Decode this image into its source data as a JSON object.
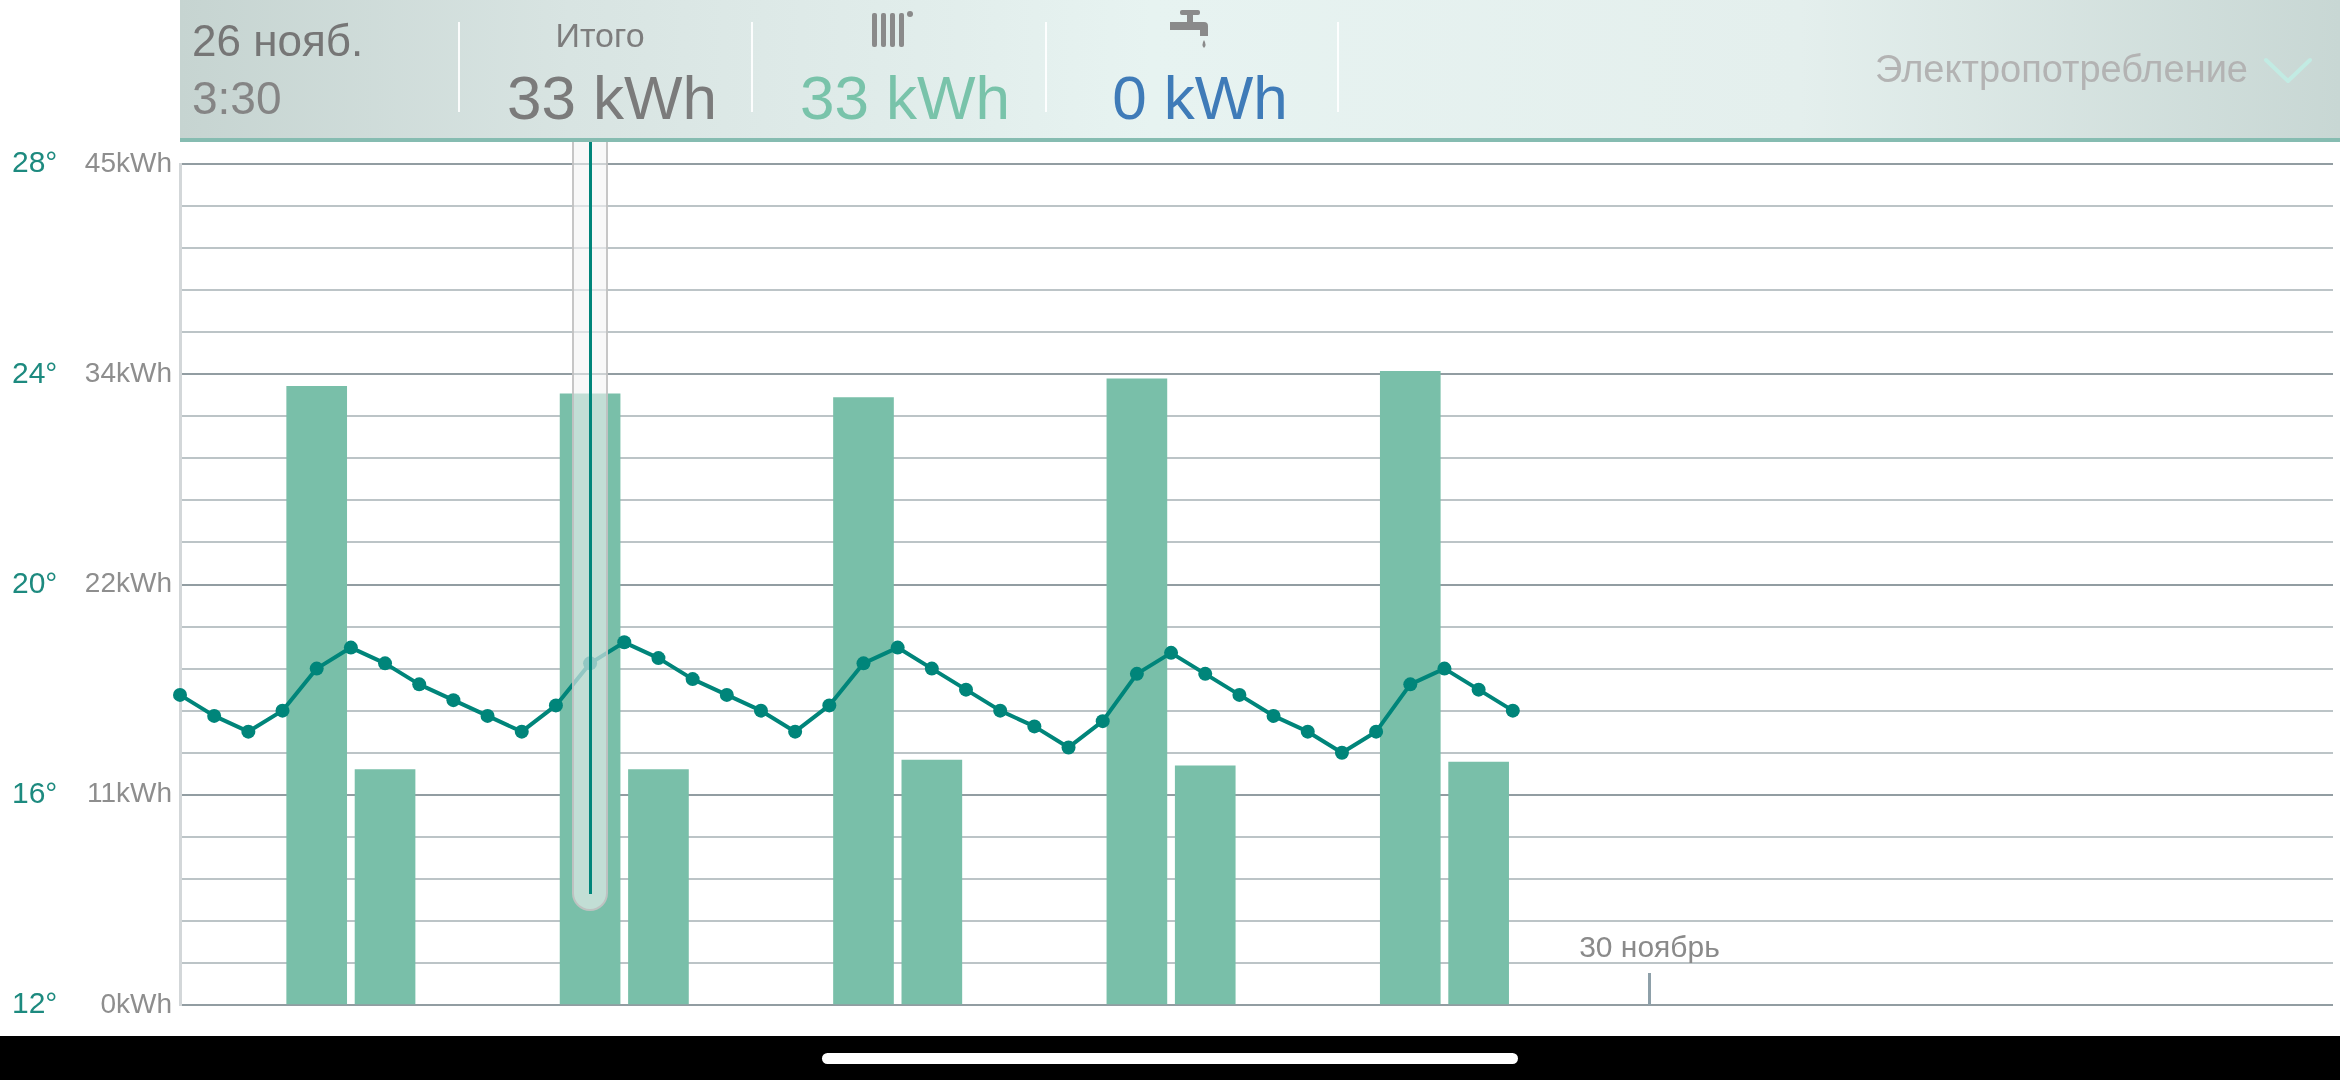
{
  "chart_data": {
    "type": "bar",
    "title": "Электропотребление",
    "annotations": [
      "26 нояб.",
      "3:30",
      "Итого",
      "33 kWh",
      "33 kWh",
      "0 kWh"
    ],
    "categories": [
      null,
      null,
      null,
      null,
      null,
      null,
      null,
      null,
      null,
      null,
      null,
      null,
      null,
      null,
      null,
      null,
      null,
      null,
      null,
      null,
      null,
      null,
      null,
      null,
      null,
      null,
      null,
      null,
      null,
      null,
      null,
      null,
      null,
      null,
      null,
      null,
      null,
      null,
      null,
      null,
      null,
      null,
      null,
      "30 ноябрь",
      null,
      null,
      null,
      null,
      null,
      null,
      null,
      null,
      null,
      null,
      null,
      null,
      null,
      null,
      null,
      null,
      null,
      null,
      null,
      null
    ],
    "ylim": [
      0,
      45
    ],
    "yticks": [
      {
        "value": 0,
        "label": "0kWh"
      },
      {
        "value": 2.25,
        "label": null
      },
      {
        "value": 4.5,
        "label": null
      },
      {
        "value": 6.75,
        "label": null
      },
      {
        "value": 9,
        "label": null
      },
      {
        "value": 11.25,
        "label": "11kWh"
      },
      {
        "value": 13.5,
        "label": null
      },
      {
        "value": 15.75,
        "label": null
      },
      {
        "value": 18,
        "label": null
      },
      {
        "value": 20.25,
        "label": null
      },
      {
        "value": 22.5,
        "label": "22kWh"
      },
      {
        "value": 24.75,
        "label": null
      },
      {
        "value": 27,
        "label": null
      },
      {
        "value": 29.25,
        "label": null
      },
      {
        "value": 31.5,
        "label": null
      },
      {
        "value": 33.75,
        "label": "34kWh"
      },
      {
        "value": 36,
        "label": null
      },
      {
        "value": 38.25,
        "label": null
      },
      {
        "value": 40.5,
        "label": null
      },
      {
        "value": 42.75,
        "label": null
      },
      {
        "value": 45,
        "label": "45kWh"
      }
    ],
    "y2lim": [
      12,
      28
    ],
    "y2ticks": [
      {
        "value": 12,
        "label": "12°"
      },
      {
        "value": 16,
        "label": "16°"
      },
      {
        "value": 20,
        "label": "20°"
      },
      {
        "value": 24,
        "label": "24°"
      },
      {
        "value": 28,
        "label": "28°"
      }
    ],
    "grid": "y",
    "marker": "circle",
    "series": [
      {
        "color": "#79bfa9",
        "values": [
          null,
          null,
          null,
          null,
          33.1,
          null,
          12.6,
          null,
          null,
          null,
          null,
          null,
          32.7,
          null,
          12.6,
          null,
          null,
          null,
          null,
          null,
          32.5,
          null,
          13.1,
          null,
          null,
          null,
          null,
          null,
          33.5,
          null,
          12.8,
          null,
          null,
          null,
          null,
          null,
          33.9,
          null,
          13.0,
          null,
          null,
          null,
          null,
          null,
          null,
          null,
          null,
          null,
          null,
          null,
          null,
          null,
          null,
          null,
          null,
          null,
          null,
          null,
          null,
          null,
          null,
          null,
          null,
          null
        ]
      },
      {
        "type": "line",
        "color": "#00857a",
        "axis": "y2",
        "values": [
          17.9,
          17.5,
          17.2,
          17.6,
          18.4,
          18.8,
          18.5,
          18.1,
          17.8,
          17.5,
          17.2,
          17.7,
          18.5,
          18.9,
          18.6,
          18.2,
          17.9,
          17.6,
          17.2,
          17.7,
          18.5,
          18.8,
          18.4,
          18.0,
          17.6,
          17.3,
          16.9,
          17.4,
          18.3,
          18.7,
          18.3,
          17.9,
          17.5,
          17.2,
          16.8,
          17.2,
          18.1,
          18.4,
          18.0,
          17.6,
          null,
          null,
          null,
          null,
          null,
          null,
          null,
          null,
          null,
          null,
          null,
          null,
          null,
          null,
          null,
          null,
          null,
          null,
          null,
          null,
          null,
          null,
          null,
          null
        ]
      }
    ]
  }
}
